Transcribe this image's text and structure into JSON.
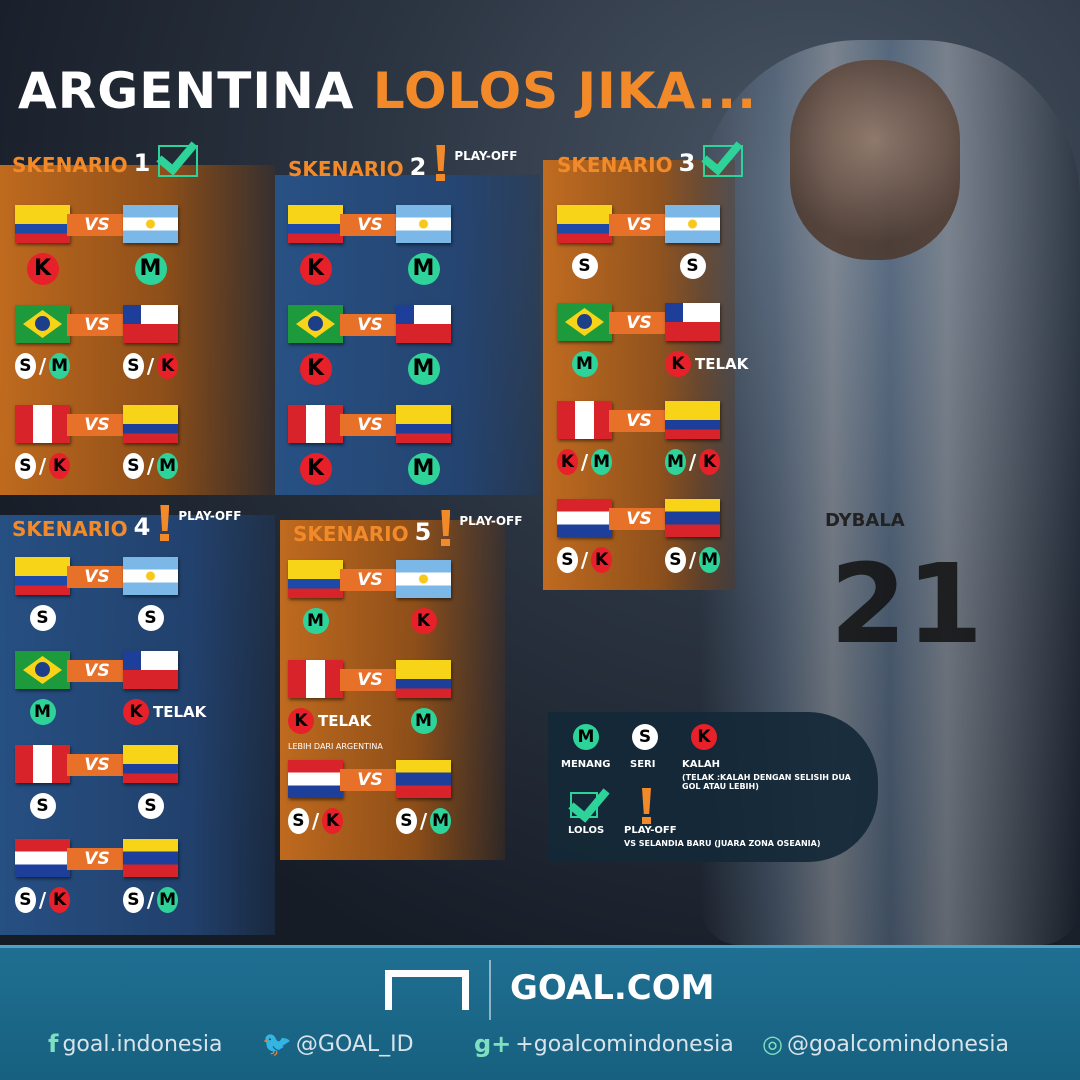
{
  "title": {
    "part1": "ARGENTINA",
    "part2": "LOLOS JIKA..."
  },
  "colors": {
    "orange": "#f28a2a",
    "green_win": "#2ed39a",
    "red_loss": "#e8202a",
    "white_draw": "#ffffff",
    "footer": "#1f6f92"
  },
  "vs_label": "VS",
  "scenarios": [
    {
      "label": "SKENARIO",
      "number": "1",
      "status": "lolos",
      "status_text": "",
      "theme": "orange",
      "matches": [
        {
          "home": "ecuador",
          "away": "argentina",
          "home_result": [
            "K"
          ],
          "away_result": [
            "M"
          ]
        },
        {
          "home": "brazil",
          "away": "chile",
          "home_result": [
            "S",
            "M"
          ],
          "away_result": [
            "S",
            "K"
          ]
        },
        {
          "home": "peru",
          "away": "colombia",
          "home_result": [
            "S",
            "K"
          ],
          "away_result": [
            "S",
            "M"
          ]
        }
      ]
    },
    {
      "label": "SKENARIO",
      "number": "2",
      "status": "play-off",
      "status_text": "PLAY-OFF",
      "theme": "blue",
      "matches": [
        {
          "home": "ecuador",
          "away": "argentina",
          "home_result": [
            "K"
          ],
          "away_result": [
            "M"
          ]
        },
        {
          "home": "brazil",
          "away": "chile",
          "home_result": [
            "K"
          ],
          "away_result": [
            "M"
          ]
        },
        {
          "home": "peru",
          "away": "colombia",
          "home_result": [
            "K"
          ],
          "away_result": [
            "M"
          ]
        }
      ]
    },
    {
      "label": "SKENARIO",
      "number": "3",
      "status": "lolos",
      "status_text": "",
      "theme": "orange",
      "matches": [
        {
          "home": "ecuador",
          "away": "argentina",
          "home_result": [
            "S"
          ],
          "away_result": [
            "S"
          ]
        },
        {
          "home": "brazil",
          "away": "chile",
          "home_result": [
            "M"
          ],
          "away_result": [
            "K"
          ],
          "away_note": "TELAK"
        },
        {
          "home": "peru",
          "away": "colombia",
          "home_result": [
            "K",
            "M"
          ],
          "away_result": [
            "M",
            "K"
          ]
        },
        {
          "home": "paraguay",
          "away": "venezuela",
          "home_result": [
            "S",
            "K"
          ],
          "away_result": [
            "S",
            "M"
          ]
        }
      ]
    },
    {
      "label": "SKENARIO",
      "number": "4",
      "status": "play-off",
      "status_text": "PLAY-OFF",
      "theme": "blue",
      "matches": [
        {
          "home": "ecuador",
          "away": "argentina",
          "home_result": [
            "S"
          ],
          "away_result": [
            "S"
          ]
        },
        {
          "home": "brazil",
          "away": "chile",
          "home_result": [
            "M"
          ],
          "away_result": [
            "K"
          ],
          "away_note": "TELAK"
        },
        {
          "home": "peru",
          "away": "colombia",
          "home_result": [
            "S"
          ],
          "away_result": [
            "S"
          ]
        },
        {
          "home": "paraguay",
          "away": "venezuela",
          "home_result": [
            "S",
            "K"
          ],
          "away_result": [
            "S",
            "M"
          ]
        }
      ]
    },
    {
      "label": "SKENARIO",
      "number": "5",
      "status": "play-off",
      "status_text": "PLAY-OFF",
      "theme": "orange",
      "matches": [
        {
          "home": "ecuador",
          "away": "argentina",
          "home_result": [
            "M"
          ],
          "away_result": [
            "K"
          ]
        },
        {
          "home": "peru",
          "away": "colombia",
          "home_result": [
            "K"
          ],
          "away_result": [
            "M"
          ],
          "home_note": "TELAK",
          "home_subnote": "LEBIH DARI ARGENTINA"
        },
        {
          "home": "paraguay",
          "away": "venezuela",
          "home_result": [
            "S",
            "K"
          ],
          "away_result": [
            "S",
            "M"
          ]
        }
      ]
    }
  ],
  "legend": {
    "win": {
      "symbol": "M",
      "label": "MENANG"
    },
    "draw": {
      "symbol": "S",
      "label": "SERI"
    },
    "loss": {
      "symbol": "K",
      "label": "KALAH",
      "note": "(TELAK :KALAH DENGAN SELISIH DUA GOL ATAU LEBIH)"
    },
    "qualify": {
      "label": "LOLOS"
    },
    "playoff": {
      "label": "PLAY-OFF",
      "note": "VS SELANDIA BARU (JUARA ZONA OSEANIA)"
    }
  },
  "player_name": "DYBALA",
  "player_number": "21",
  "footer": {
    "brand": "GOAL.COM",
    "social": [
      {
        "icon": "facebook-icon",
        "glyph": "f",
        "handle": "goal.indonesia"
      },
      {
        "icon": "twitter-icon",
        "glyph": "🐦",
        "handle": "@GOAL_ID"
      },
      {
        "icon": "google-plus-icon",
        "glyph": "g+",
        "handle": "+goalcomindonesia"
      },
      {
        "icon": "instagram-icon",
        "glyph": "◎",
        "handle": "@goalcomindonesia"
      }
    ]
  }
}
